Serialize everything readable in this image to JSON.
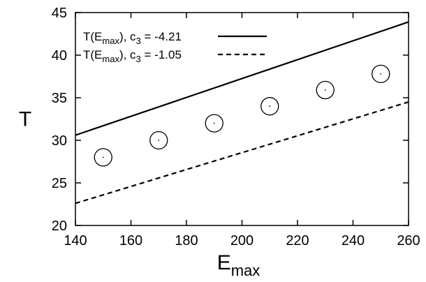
{
  "chart_data": {
    "type": "line",
    "xlabel": {
      "main": "E",
      "sub": "max"
    },
    "ylabel": "T",
    "xlim": [
      140,
      260
    ],
    "ylim": [
      20,
      45
    ],
    "xticks": [
      140,
      160,
      180,
      200,
      220,
      240,
      260
    ],
    "yticks": [
      20,
      25,
      30,
      35,
      40,
      45
    ],
    "grid": false,
    "legend_position": "top-left",
    "series": [
      {
        "name_parts": {
          "pre": "T(E",
          "sub": "max",
          "mid": "), c",
          "sub2": "3",
          "post": " = -4.21"
        },
        "style": "solid",
        "x": [
          140,
          260
        ],
        "y": [
          30.6,
          43.9
        ]
      },
      {
        "name_parts": {
          "pre": "T(E",
          "sub": "max",
          "mid": "), c",
          "sub2": "3",
          "post": " = -1.05"
        },
        "style": "dashed",
        "x": [
          140,
          260
        ],
        "y": [
          22.6,
          34.5
        ]
      }
    ],
    "points": {
      "marker": "open-circle-with-center-dot",
      "x": [
        150,
        170,
        190,
        210,
        230,
        250
      ],
      "y": [
        28.0,
        30.0,
        32.0,
        34.0,
        35.9,
        37.8
      ]
    }
  }
}
